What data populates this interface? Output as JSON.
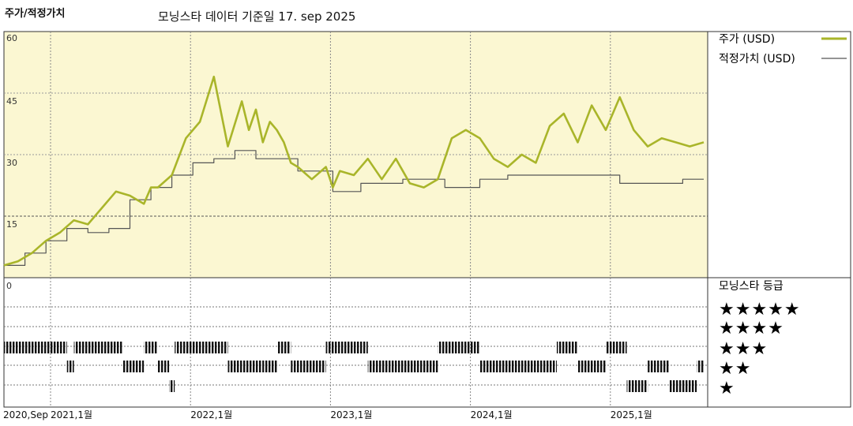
{
  "header": {
    "title": "주가/적정가치",
    "subtitle": "모닝스타 데이터 기준일 17. sep 2025"
  },
  "legend": {
    "price_label": "주가 (USD)",
    "fair_label": "적정가치 (USD)",
    "rating_title": "모닝스타 등급",
    "ratings": [
      "★★★★★",
      "★★★★",
      "★★★",
      "★★",
      "★"
    ]
  },
  "colors": {
    "price": "#A9B52A",
    "fair": "#555555",
    "plot_bg": "#FBF7D2",
    "rating_bar": "#111111"
  },
  "chart_data": {
    "type": "line",
    "title": "주가/적정가치",
    "subtitle": "모닝스타 데이터 기준일 17. sep 2025",
    "x_range": [
      "2020-09",
      "2025-09"
    ],
    "ylim": [
      0,
      60
    ],
    "y_ticks": [
      0,
      15,
      30,
      45,
      60
    ],
    "x_ticks": [
      "2020,Sep",
      "2021,1월",
      "2022,1월",
      "2023,1월",
      "2024,1월",
      "2025,1월"
    ],
    "x_tick_pos": [
      0,
      0.333,
      1.333,
      2.333,
      3.333,
      4.333
    ],
    "grid": true,
    "legend_position": "right",
    "series": [
      {
        "name": "주가 (USD)",
        "x": [
          0,
          0.1,
          0.2,
          0.3,
          0.4,
          0.5,
          0.6,
          0.7,
          0.8,
          0.9,
          1.0,
          1.05,
          1.1,
          1.2,
          1.3,
          1.4,
          1.5,
          1.6,
          1.7,
          1.75,
          1.8,
          1.85,
          1.9,
          1.95,
          2.0,
          2.05,
          2.1,
          2.2,
          2.3,
          2.35,
          2.4,
          2.5,
          2.6,
          2.7,
          2.8,
          2.9,
          3.0,
          3.1,
          3.2,
          3.3,
          3.4,
          3.5,
          3.6,
          3.7,
          3.8,
          3.9,
          4.0,
          4.1,
          4.2,
          4.3,
          4.4,
          4.5,
          4.6,
          4.7,
          4.8,
          4.9,
          5.0
        ],
        "values": [
          3,
          4,
          6,
          9,
          11,
          14,
          13,
          17,
          21,
          20,
          18,
          22,
          22,
          25,
          34,
          38,
          49,
          32,
          43,
          36,
          41,
          33,
          38,
          36,
          33,
          28,
          27,
          24,
          27,
          22,
          26,
          25,
          29,
          24,
          29,
          23,
          22,
          24,
          34,
          36,
          34,
          29,
          27,
          30,
          28,
          37,
          40,
          33,
          42,
          36,
          44,
          36,
          32,
          34,
          33,
          32,
          33
        ]
      },
      {
        "name": "적정가치 (USD)",
        "x": [
          0,
          0.15,
          0.15,
          0.3,
          0.3,
          0.45,
          0.45,
          0.6,
          0.6,
          0.75,
          0.75,
          0.9,
          0.9,
          1.05,
          1.05,
          1.2,
          1.2,
          1.35,
          1.35,
          1.5,
          1.5,
          1.65,
          1.65,
          1.8,
          1.8,
          2.1,
          2.1,
          2.35,
          2.35,
          2.55,
          2.55,
          2.85,
          2.85,
          3.15,
          3.15,
          3.4,
          3.4,
          3.6,
          3.6,
          3.8,
          3.8,
          4.4,
          4.4,
          4.6,
          4.6,
          4.85,
          4.85,
          5.0
        ],
        "values": [
          3,
          3,
          6,
          6,
          9,
          9,
          12,
          12,
          11,
          11,
          12,
          12,
          19,
          19,
          22,
          22,
          25,
          25,
          28,
          28,
          29,
          29,
          31,
          31,
          29,
          29,
          26,
          26,
          21,
          21,
          23,
          23,
          24,
          24,
          22,
          22,
          24,
          24,
          25,
          25,
          25,
          25,
          23,
          23,
          23,
          23,
          24,
          24
        ]
      }
    ],
    "rating_rows": [
      "★★★★★",
      "★★★★",
      "★★★",
      "★★",
      "★"
    ],
    "ratings_timeline": [
      {
        "from": 0.0,
        "to": 0.45,
        "stars": 3
      },
      {
        "from": 0.45,
        "to": 0.5,
        "stars": 2
      },
      {
        "from": 0.5,
        "to": 0.85,
        "stars": 3
      },
      {
        "from": 0.85,
        "to": 1.0,
        "stars": 2
      },
      {
        "from": 1.0,
        "to": 1.1,
        "stars": 3
      },
      {
        "from": 1.1,
        "to": 1.18,
        "stars": 2
      },
      {
        "from": 1.18,
        "to": 1.22,
        "stars": 1
      },
      {
        "from": 1.22,
        "to": 1.6,
        "stars": 3
      },
      {
        "from": 1.6,
        "to": 1.85,
        "stars": 2
      },
      {
        "from": 1.85,
        "to": 1.95,
        "stars": 2
      },
      {
        "from": 1.95,
        "to": 2.05,
        "stars": 3
      },
      {
        "from": 2.05,
        "to": 2.3,
        "stars": 2
      },
      {
        "from": 2.3,
        "to": 2.6,
        "stars": 3
      },
      {
        "from": 2.6,
        "to": 2.75,
        "stars": 2
      },
      {
        "from": 2.75,
        "to": 3.1,
        "stars": 2
      },
      {
        "from": 3.1,
        "to": 3.4,
        "stars": 3
      },
      {
        "from": 3.4,
        "to": 3.95,
        "stars": 2
      },
      {
        "from": 3.95,
        "to": 4.1,
        "stars": 3
      },
      {
        "from": 4.1,
        "to": 4.3,
        "stars": 2
      },
      {
        "from": 4.3,
        "to": 4.45,
        "stars": 3
      },
      {
        "from": 4.45,
        "to": 4.6,
        "stars": 1
      },
      {
        "from": 4.6,
        "to": 4.75,
        "stars": 2
      },
      {
        "from": 4.75,
        "to": 4.95,
        "stars": 1
      },
      {
        "from": 4.95,
        "to": 5.0,
        "stars": 2
      }
    ]
  }
}
